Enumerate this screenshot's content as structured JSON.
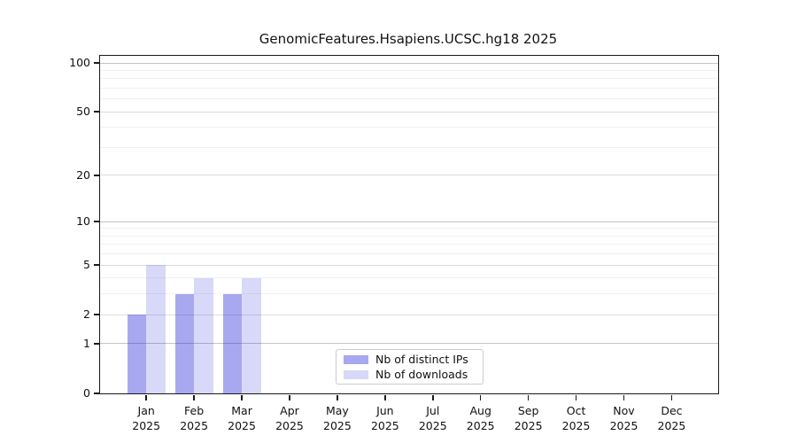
{
  "figure": {
    "background_color": "#ffffff"
  },
  "chart_data": {
    "type": "bar",
    "title": "GenomicFeatures.Hsapiens.UCSC.hg18 2025",
    "categories": [
      "Jan",
      "Feb",
      "Mar",
      "Apr",
      "May",
      "Jun",
      "Jul",
      "Aug",
      "Sep",
      "Oct",
      "Nov",
      "Dec"
    ],
    "category_year_label": "2025",
    "series": [
      {
        "name": "Nb of distinct IPs",
        "color": "rgba(38,38,218,0.40)",
        "values": [
          2,
          3,
          3,
          0,
          0,
          0,
          0,
          0,
          0,
          0,
          0,
          0
        ]
      },
      {
        "name": "Nb of downloads",
        "color": "rgba(38,38,216,0.18)",
        "values": [
          5,
          4,
          4,
          0,
          0,
          0,
          0,
          0,
          0,
          0,
          0,
          0
        ]
      }
    ],
    "xlabel": "",
    "ylabel": "",
    "y_axis": {
      "scale": "log10(1+value)",
      "tick_values": [
        0,
        1,
        2,
        5,
        10,
        20,
        50,
        100
      ],
      "ylim": [
        0,
        110
      ],
      "gridlines": {
        "strong": [
          1,
          10,
          100
        ],
        "major": [
          2,
          5,
          20,
          50
        ],
        "minor": [
          3,
          4,
          6,
          7,
          8,
          9,
          30,
          40,
          60,
          70,
          80,
          90
        ]
      }
    },
    "grid": "on",
    "legend_position": "lower-center"
  },
  "colors": {
    "axis": "#1a1a1a",
    "grid_strong": "#c3c3c3",
    "grid_major": "#dddddd",
    "grid_minor": "#f1f1f1",
    "legend_border": "#cccccc"
  }
}
